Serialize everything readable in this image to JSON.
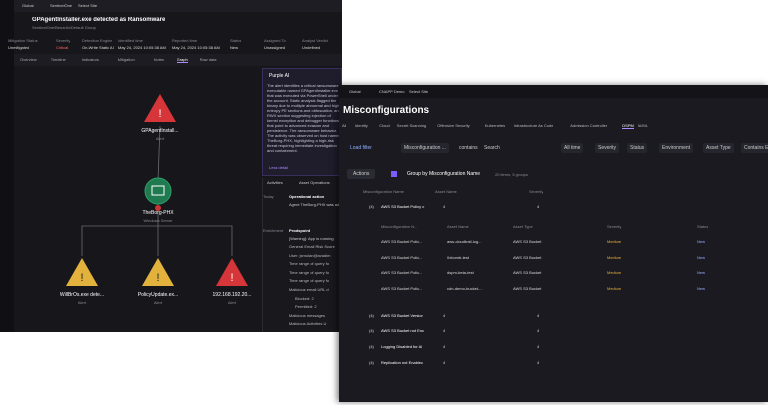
{
  "left": {
    "breadcrumb": [
      "Global",
      "SentinelOne",
      "Select Site"
    ],
    "alert_title": "GPAgentInstaller.exe detected as Ransomware",
    "alert_path": "SentinelOne/Benarlin/Default Group",
    "fields": [
      {
        "label": "Mitigation Status",
        "value": "Unmitigated"
      },
      {
        "label": "Severity",
        "value": "Critical"
      },
      {
        "label": "Detection Engine",
        "value": "On-Write Static AI"
      },
      {
        "label": "Identified time",
        "value": "May 24, 2024 10:05:38 AM"
      },
      {
        "label": "Reported time",
        "value": "May 24, 2024 10:05:38 AM"
      },
      {
        "label": "Status",
        "value": "New"
      },
      {
        "label": "Assigned To",
        "value": "Unassigned"
      },
      {
        "label": "Analyst Verdict",
        "value": "Undefined"
      }
    ],
    "tabs": [
      "Overview",
      "Timeline",
      "Indicators",
      "Mitigation",
      "Notes",
      "Graph",
      "Raw data"
    ],
    "active_tab": "Graph",
    "nodes": [
      {
        "label": "GPAgentInstall...",
        "sub": "Alert"
      },
      {
        "label": "TheBorg-PHX",
        "sub": "Windows Server"
      },
      {
        "label": "WillBrOs.exe dete...",
        "sub": "Alert"
      },
      {
        "label": "PolicyUpdate.ex...",
        "sub": "Alert"
      },
      {
        "label": "192.168.192.20...",
        "sub": "Alert"
      }
    ],
    "purple_ai": {
      "title": "Purple AI",
      "text": "The alert identifies a critical ransomware executable named GPAgentInstaller.exe that was executed via PowerShell under the account. Static analysis flagged the binary due to multiple abnormal and high-entropy PE sections and obfuscation, an RWX section suggesting injection of kernel exception and debugger functions that point to advanced evasion and persistence. The ransomware behavior. The activity was observed on host named TheBorg-PHX, highlighting a high-risk threat requiring immediate investigation and containment.",
      "less": "Less detail"
    },
    "activity_tabs": [
      "Activities",
      "Asset Operations"
    ],
    "activities": [
      {
        "time": "Today",
        "title": "Operational action",
        "text": "Agent TheBorg-PHX was added"
      },
      {
        "time": "Enrichment",
        "title": "Prodspoint",
        "text": "[Warning]: App is running"
      }
    ],
    "activity_lines": [
      "General Email Risk Score",
      "User: jsmolan@avadim",
      "Time range of query fo",
      "Time range of query fo",
      "Time range of query fo",
      "Malicious email URL d",
      "Blocked: 2",
      "Permitted: 2",
      "Malicious messages",
      "Malicious Activities U"
    ]
  },
  "right": {
    "breadcrumb": [
      "Global",
      "CNAPP Demo",
      "Select Site"
    ],
    "title": "Misconfigurations",
    "tabs": [
      "All",
      "Identity",
      "Cloud",
      "Secret Scanning",
      "Offensive Security",
      "Kubernetes",
      "Infrastructure As Code",
      "Admission Controller",
      "DSPM",
      "AI/ML"
    ],
    "active_tab": "DSPM",
    "filters": [
      "Load filter",
      "Misconfiguration ...",
      "contains",
      "Search",
      "All time",
      "Severity",
      "Status",
      "Environment",
      "Asset Type",
      "Contains E..."
    ],
    "actions": "Actions",
    "group_by": "Group by Misconfiguration Name",
    "summary": "20 items, 5 groups",
    "columns": [
      "Misconfiguration Name",
      "Asset Name",
      "Severity"
    ],
    "sub_columns": [
      "Misconfiguration N...",
      "Asset Name",
      "Asset Type",
      "Severity",
      "Status"
    ],
    "groups": [
      {
        "count": "(4)",
        "name": "AWS S3 Bucket Policy c",
        "assets": "4",
        "severity": "4"
      },
      {
        "count": "(4)",
        "name": "AWS S3 Bucket Versior",
        "assets": "4",
        "severity": "4"
      },
      {
        "count": "(4)",
        "name": "AWS S3 Bucket not Enc",
        "assets": "4",
        "severity": "4"
      },
      {
        "count": "(4)",
        "name": "Logging Disabled for Ai",
        "assets": "4",
        "severity": "4"
      },
      {
        "count": "(4)",
        "name": "Replication not Enablec",
        "assets": "4",
        "severity": "4"
      }
    ],
    "rows": [
      [
        "AWS S3 Bucket Polic...",
        "aws-cloudtrail-log...",
        "AWS S3 Bucket",
        "Medium",
        "New"
      ],
      [
        "AWS S3 Bucket Polic...",
        "0xbomb-test",
        "AWS S3 Bucket",
        "Medium",
        "New"
      ],
      [
        "AWS S3 Bucket Polic...",
        "dspm-beta-test",
        "AWS S3 Bucket",
        "Medium",
        "New"
      ],
      [
        "AWS S3 Bucket Polic...",
        "cdn-demo-bucket-...",
        "AWS S3 Bucket",
        "Medium",
        "New"
      ]
    ]
  }
}
